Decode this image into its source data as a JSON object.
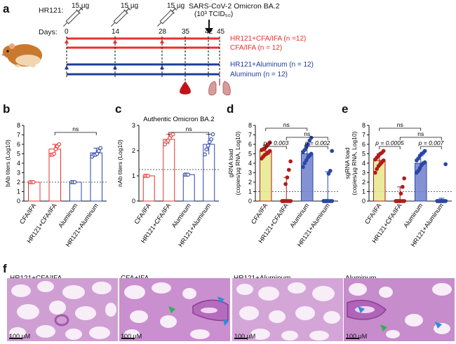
{
  "panel_labels": {
    "a": "a",
    "b": "b",
    "c": "c",
    "d": "d",
    "e": "e",
    "f": "f"
  },
  "timeline": {
    "prefix": "HR121:",
    "doses": [
      "15 µg",
      "15 µg",
      "15 µg"
    ],
    "challenge_line1": "SARS-CoV-2 Omicron BA.2",
    "challenge_line2": "(10³ TCID₅₀)",
    "days_label": "Days:",
    "days": [
      "0",
      "14",
      "28",
      "35",
      "42",
      "45"
    ],
    "groups": [
      {
        "label": "HR121+CFA/IFA (n =12)",
        "color": "#e8322f"
      },
      {
        "label": "CFA/IFA (n = 12)",
        "color": "#e8322f"
      },
      {
        "label": "HR121+Aluminum (n = 12)",
        "color": "#1f3d99"
      },
      {
        "label": "Aluminum (n = 12)",
        "color": "#1f3d99"
      }
    ]
  },
  "colors": {
    "red": "#e8322f",
    "blue": "#2b47a6",
    "yellow": "#e6e88a",
    "navy": "#1f3d99"
  },
  "chart_data": [
    {
      "id": "b",
      "type": "scatter",
      "title": "",
      "ylabel": "bAb titers (Log10)",
      "ylim": [
        0,
        8
      ],
      "yticks": [
        "0",
        "1",
        "2",
        "3",
        "4",
        "5",
        "6",
        "7",
        "8"
      ],
      "categories": [
        "CFA/IFA",
        "HR121+CFA/IFA",
        "Aluminum",
        "HR121+Aluminum"
      ],
      "means": [
        2,
        5.5,
        2,
        5.1
      ],
      "points": [
        [
          2,
          2,
          2
        ],
        [
          4.9,
          4.9,
          5.0,
          5.5,
          5.8,
          6.0
        ],
        [
          2,
          2,
          2
        ],
        [
          4.7,
          4.9,
          4.9,
          5.0,
          5.3,
          5.6
        ]
      ],
      "colors": [
        "#e8322f",
        "#e8322f",
        "#2b47a6",
        "#2b47a6"
      ],
      "fill": [
        "none",
        "none",
        "none",
        "none"
      ],
      "sig": [
        {
          "from": 1,
          "to": 3,
          "label": "ns"
        }
      ],
      "dotted": 2
    },
    {
      "id": "c",
      "type": "scatter",
      "title": "Authentic Omicron BA.2",
      "ylabel": "nAb titers (Log10)",
      "ylim": [
        0,
        3
      ],
      "yticks": [
        "0",
        "1",
        "2",
        "3"
      ],
      "categories": [
        "CFA/IFA",
        "HR121+CFA/IFA",
        "Aluminum",
        "HR121+Aluminum"
      ],
      "means": [
        1.0,
        2.45,
        1.05,
        2.25
      ],
      "points": [
        [
          1.0,
          1.0,
          1.0
        ],
        [
          2.25,
          2.35,
          2.4,
          2.5,
          2.6,
          2.65
        ],
        [
          1.05,
          1.05,
          1.05
        ],
        [
          1.85,
          2.05,
          2.2,
          2.35,
          2.45,
          2.65
        ]
      ],
      "colors": [
        "#e8322f",
        "#e8322f",
        "#2b47a6",
        "#2b47a6"
      ],
      "fill": [
        "none",
        "none",
        "none",
        "none"
      ],
      "sig": [
        {
          "from": 1,
          "to": 3,
          "label": "ns"
        }
      ],
      "dotted": 1.25
    },
    {
      "id": "d",
      "type": "bar",
      "title": "",
      "ylabel": "gRNA load (copies/µg RNA, Log10)",
      "ylim": [
        0,
        8
      ],
      "yticks": [
        "0",
        "1",
        "2",
        "3",
        "4",
        "5",
        "6",
        "7",
        "8"
      ],
      "categories": [
        "CFA/IFA",
        "HR121+CFA/IFA",
        "Aluminum",
        "HR121+Aluminum"
      ],
      "means": [
        5.3,
        0.1,
        5.0,
        0.1
      ],
      "errs": [
        0.6,
        2.4,
        0.9,
        3.0
      ],
      "points": [
        [
          4.5,
          4.7,
          4.9,
          5.0,
          5.1,
          5.3,
          5.4,
          5.5,
          5.6,
          5.8,
          6.0,
          6.2
        ],
        [
          0,
          0,
          0,
          0,
          0,
          0,
          0,
          0,
          1.8,
          2.5,
          3.3,
          4.2
        ],
        [
          3.6,
          4.0,
          4.3,
          4.6,
          4.8,
          5.0,
          5.2,
          5.4,
          5.7,
          6.0,
          6.4,
          6.7
        ],
        [
          0,
          0,
          0,
          0,
          0,
          0,
          0,
          0,
          0,
          2.9,
          3.2,
          5.3
        ]
      ],
      "colors": [
        "#b01c1c",
        "#b01c1c",
        "#2b47a6",
        "#2b47a6"
      ],
      "fill": [
        "#e6e88a",
        "none",
        "#6f7fcc",
        "none"
      ],
      "sig": [
        {
          "from": 0,
          "to": 1,
          "label": "p = 0.003",
          "level": 0
        },
        {
          "from": 2,
          "to": 3,
          "label": "p = 0.002",
          "level": 0
        },
        {
          "from": 0,
          "to": 2,
          "label": "ns",
          "level": 2
        },
        {
          "from": 1,
          "to": 3,
          "label": "ns",
          "level": 1
        }
      ],
      "dotted": 1
    },
    {
      "id": "e",
      "type": "bar",
      "title": "",
      "ylabel": "sgRNA load (copies/µg RNA, Log10)",
      "ylim": [
        0,
        8
      ],
      "yticks": [
        "0",
        "1",
        "2",
        "3",
        "4",
        "5",
        "6",
        "7",
        "8"
      ],
      "categories": [
        "CFA/IFA",
        "HR121+CFA/IFA",
        "Aluminum",
        "HR121+Aluminum"
      ],
      "means": [
        4.3,
        0.1,
        4.0,
        0.1
      ],
      "errs": [
        0.7,
        1.4,
        0.8,
        0.2
      ],
      "points": [
        [
          3.0,
          3.4,
          3.7,
          3.9,
          4.1,
          4.3,
          4.4,
          4.6,
          4.8,
          5.0,
          5.1,
          5.3
        ],
        [
          0,
          0,
          0,
          0,
          0,
          0,
          0,
          0,
          0,
          0.8,
          1.5,
          2.4
        ],
        [
          3.0,
          3.2,
          3.5,
          3.8,
          4.0,
          4.1,
          4.3,
          4.5,
          4.8,
          5.0,
          5.1,
          5.3
        ],
        [
          0,
          0,
          0,
          0,
          0,
          0,
          0,
          0,
          0,
          0,
          0,
          3.9
        ]
      ],
      "colors": [
        "#b01c1c",
        "#b01c1c",
        "#2b47a6",
        "#2b47a6"
      ],
      "fill": [
        "#e6e88a",
        "none",
        "#6f7fcc",
        "none"
      ],
      "sig": [
        {
          "from": 0,
          "to": 1,
          "label": "p = 0.0005",
          "level": 0
        },
        {
          "from": 2,
          "to": 3,
          "label": "p = 0.007",
          "level": 0
        },
        {
          "from": 1,
          "to": 3,
          "label": "ns",
          "level": 1
        },
        {
          "from": 0,
          "to": 2,
          "label": "ns",
          "level": 2
        }
      ],
      "dotted": 1
    }
  ],
  "histology": {
    "labels": [
      "HR121+CFA/IFA",
      "CFA+IFA",
      "HR121+Aluminum",
      "Aluminum"
    ],
    "scale": "100 µM"
  }
}
